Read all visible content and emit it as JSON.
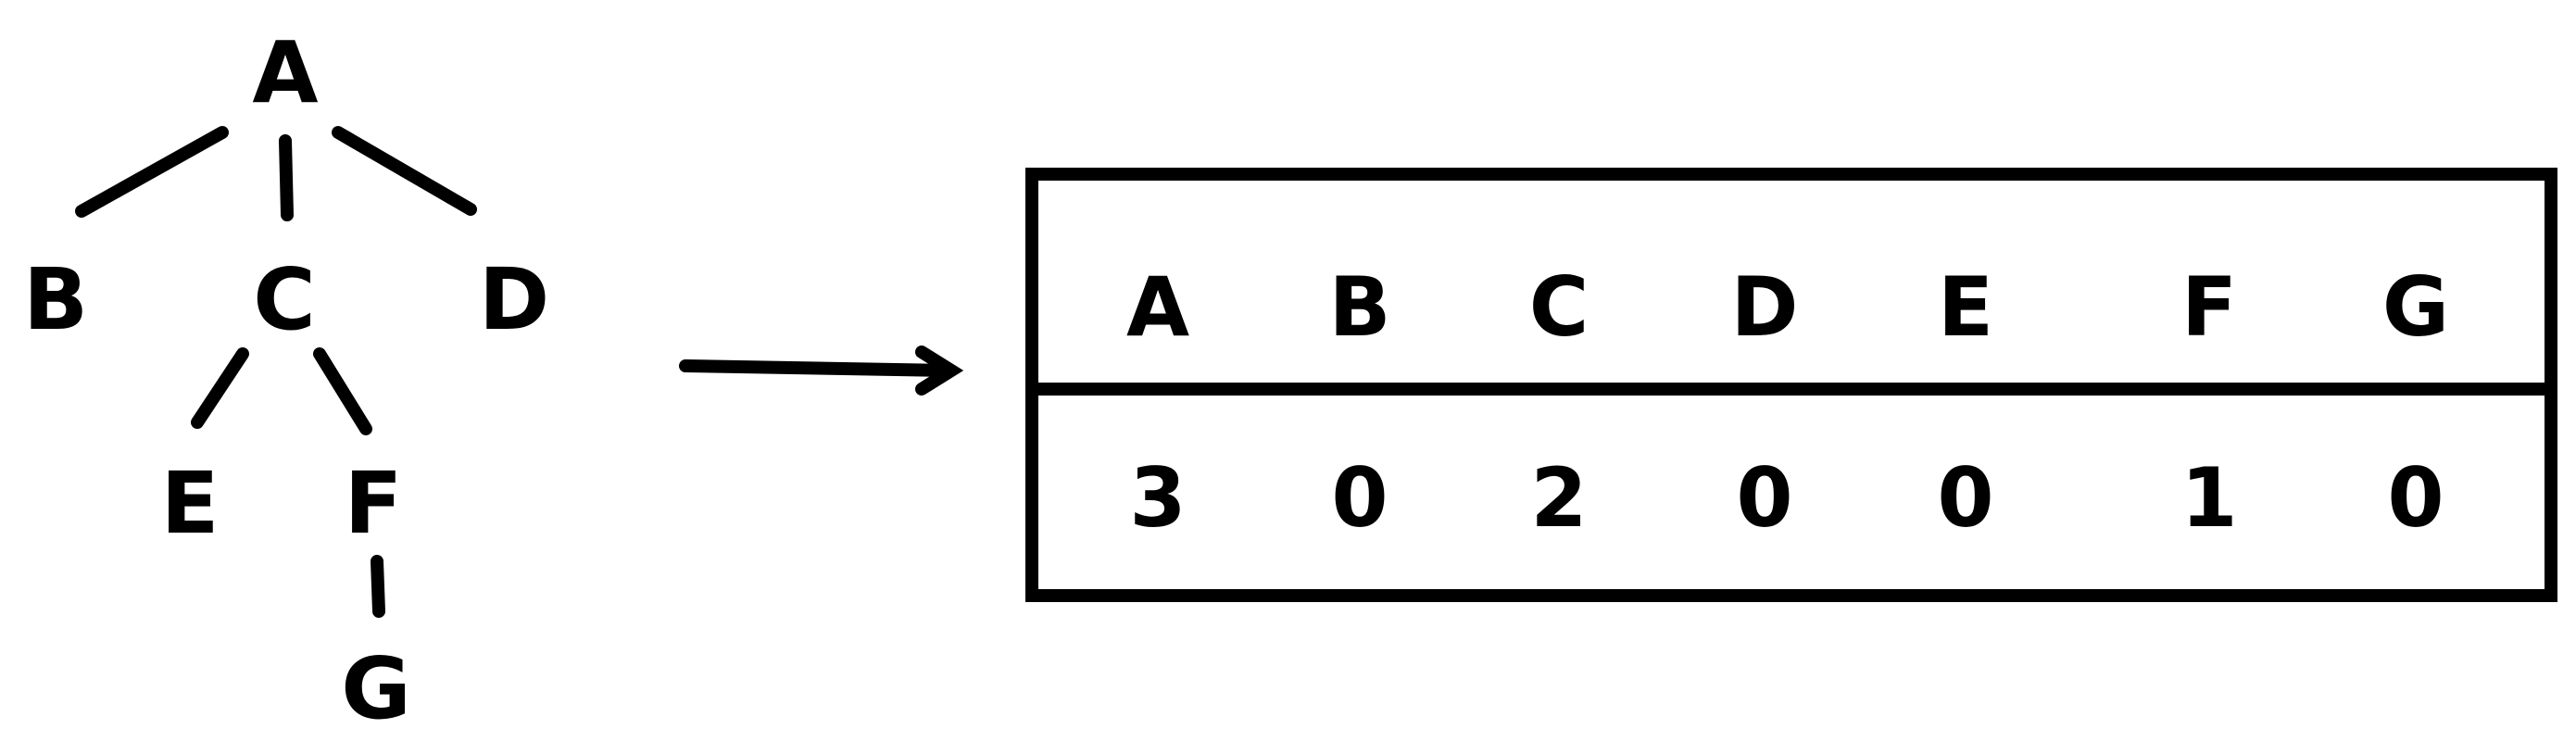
{
  "tree": {
    "nodes": [
      {
        "id": "A",
        "label": "A"
      },
      {
        "id": "B",
        "label": "B"
      },
      {
        "id": "C",
        "label": "C"
      },
      {
        "id": "D",
        "label": "D"
      },
      {
        "id": "E",
        "label": "E"
      },
      {
        "id": "F",
        "label": "F"
      },
      {
        "id": "G",
        "label": "G"
      }
    ],
    "edges": [
      {
        "from": "A",
        "to": "B"
      },
      {
        "from": "A",
        "to": "C"
      },
      {
        "from": "A",
        "to": "D"
      },
      {
        "from": "C",
        "to": "E"
      },
      {
        "from": "C",
        "to": "F"
      },
      {
        "from": "F",
        "to": "G"
      }
    ]
  },
  "table": {
    "headers": [
      "A",
      "B",
      "C",
      "D",
      "E",
      "F",
      "G"
    ],
    "values": [
      "3",
      "0",
      "2",
      "0",
      "0",
      "1",
      "0"
    ]
  }
}
